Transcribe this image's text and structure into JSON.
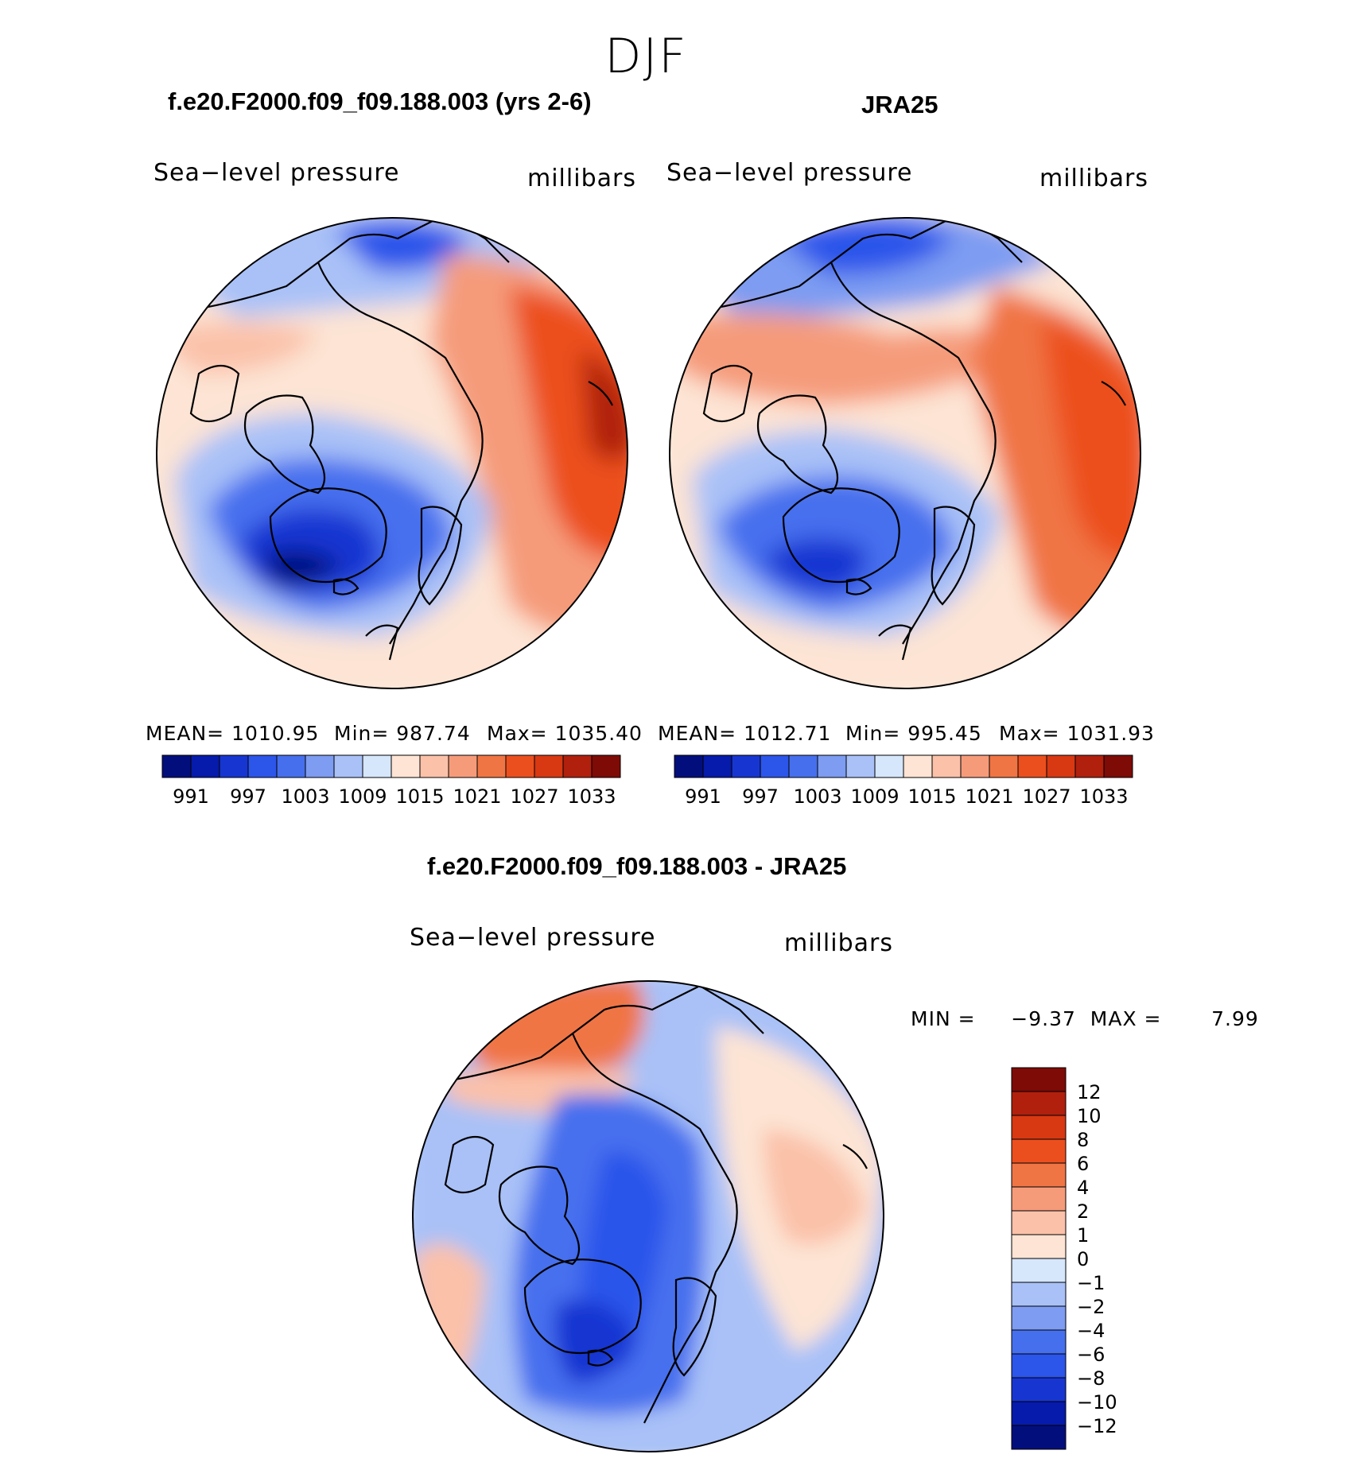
{
  "season_title": "DJF",
  "panels": [
    {
      "title": "f.e20.F2000.f09_f09.188.003 (yrs 2-6)",
      "variable": "Sea−level pressure",
      "units": "millibars",
      "mean_text": "MEAN=  1010.95",
      "min_text": "Min=  987.74",
      "max_text": "Max=  1035.40"
    },
    {
      "title": "JRA25",
      "variable": "Sea−level pressure",
      "units": "millibars",
      "mean_text": "MEAN=  1012.71",
      "min_text": "Min=  995.45",
      "max_text": "Max=  1031.93"
    }
  ],
  "diff_panel": {
    "title": "f.e20.F2000.f09_f09.188.003 - JRA25",
    "variable": "Sea−level pressure",
    "units": "millibars",
    "minmax_text": "MIN =     −9.37  MAX =       7.99"
  },
  "chart_data": [
    {
      "type": "heatmap",
      "projection": "north polar stereographic",
      "title": "f.e20.F2000.f09_f09.188.003 (yrs 2-6)",
      "variable": "Sea-level pressure",
      "units": "millibars",
      "mean": 1010.95,
      "min": 987.74,
      "max": 1035.4,
      "colorbar_ticks": [
        991,
        997,
        1003,
        1009,
        1015,
        1021,
        1027,
        1033
      ],
      "colorbar_tick_labels": [
        "991",
        "997",
        "1003",
        "1009",
        "1015",
        "1021",
        "1027",
        "1033"
      ],
      "colorbar_colors": [
        "#030e7d",
        "#061aab",
        "#1736d1",
        "#2c55ea",
        "#466fee",
        "#7d9cf2",
        "#a9c1f7",
        "#d6e6fb",
        "#fde4d4",
        "#fbc1a9",
        "#f59b7a",
        "#f07544",
        "#ec4f1e",
        "#d83812",
        "#b0200d",
        "#7e0b05"
      ],
      "colorbar_orientation": "horizontal",
      "features": [
        {
          "region": "Iceland / Irminger Sea",
          "level": "low",
          "approx_value": 988
        },
        {
          "region": "Siberia",
          "level": "high",
          "approx_value": 1035
        }
      ]
    },
    {
      "type": "heatmap",
      "projection": "north polar stereographic",
      "title": "JRA25",
      "variable": "Sea-level pressure",
      "units": "millibars",
      "mean": 1012.71,
      "min": 995.45,
      "max": 1031.93,
      "colorbar_ticks": [
        991,
        997,
        1003,
        1009,
        1015,
        1021,
        1027,
        1033
      ],
      "colorbar_tick_labels": [
        "991",
        "997",
        "1003",
        "1009",
        "1015",
        "1021",
        "1027",
        "1033"
      ],
      "colorbar_colors": [
        "#030e7d",
        "#061aab",
        "#1736d1",
        "#2c55ea",
        "#466fee",
        "#7d9cf2",
        "#a9c1f7",
        "#d6e6fb",
        "#fde4d4",
        "#fbc1a9",
        "#f59b7a",
        "#f07544",
        "#ec4f1e",
        "#d83812",
        "#b0200d",
        "#7e0b05"
      ],
      "colorbar_orientation": "horizontal",
      "features": [
        {
          "region": "Iceland / Irminger Sea",
          "level": "low",
          "approx_value": 996
        },
        {
          "region": "Siberia",
          "level": "high",
          "approx_value": 1031
        }
      ]
    },
    {
      "type": "heatmap",
      "projection": "north polar stereographic",
      "title": "f.e20.F2000.f09_f09.188.003 - JRA25",
      "variable": "Sea-level pressure",
      "units": "millibars",
      "min": -9.37,
      "max": 7.99,
      "colorbar_ticks": [
        12,
        10,
        8,
        6,
        4,
        2,
        1,
        0,
        -1,
        -2,
        -4,
        -6,
        -8,
        -10,
        -12
      ],
      "colorbar_tick_labels": [
        "12",
        "10",
        "8",
        "6",
        "4",
        "2",
        "1",
        "0",
        "−1",
        "−2",
        "−4",
        "−6",
        "−8",
        "−10",
        "−12"
      ],
      "colorbar_colors": [
        "#7e0b05",
        "#b0200d",
        "#d83812",
        "#ec4f1e",
        "#f07544",
        "#f59b7a",
        "#fbc1a9",
        "#fde4d4",
        "#d6e6fb",
        "#a9c1f7",
        "#7d9cf2",
        "#466fee",
        "#2c55ea",
        "#1736d1",
        "#061aab",
        "#030e7d"
      ],
      "colorbar_orientation": "vertical",
      "features": [
        {
          "region": "North Pacific / Bering",
          "level": "high",
          "approx_value": 8
        },
        {
          "region": "Arctic Ocean and Atlantic",
          "level": "low",
          "approx_value": -9
        }
      ]
    }
  ]
}
